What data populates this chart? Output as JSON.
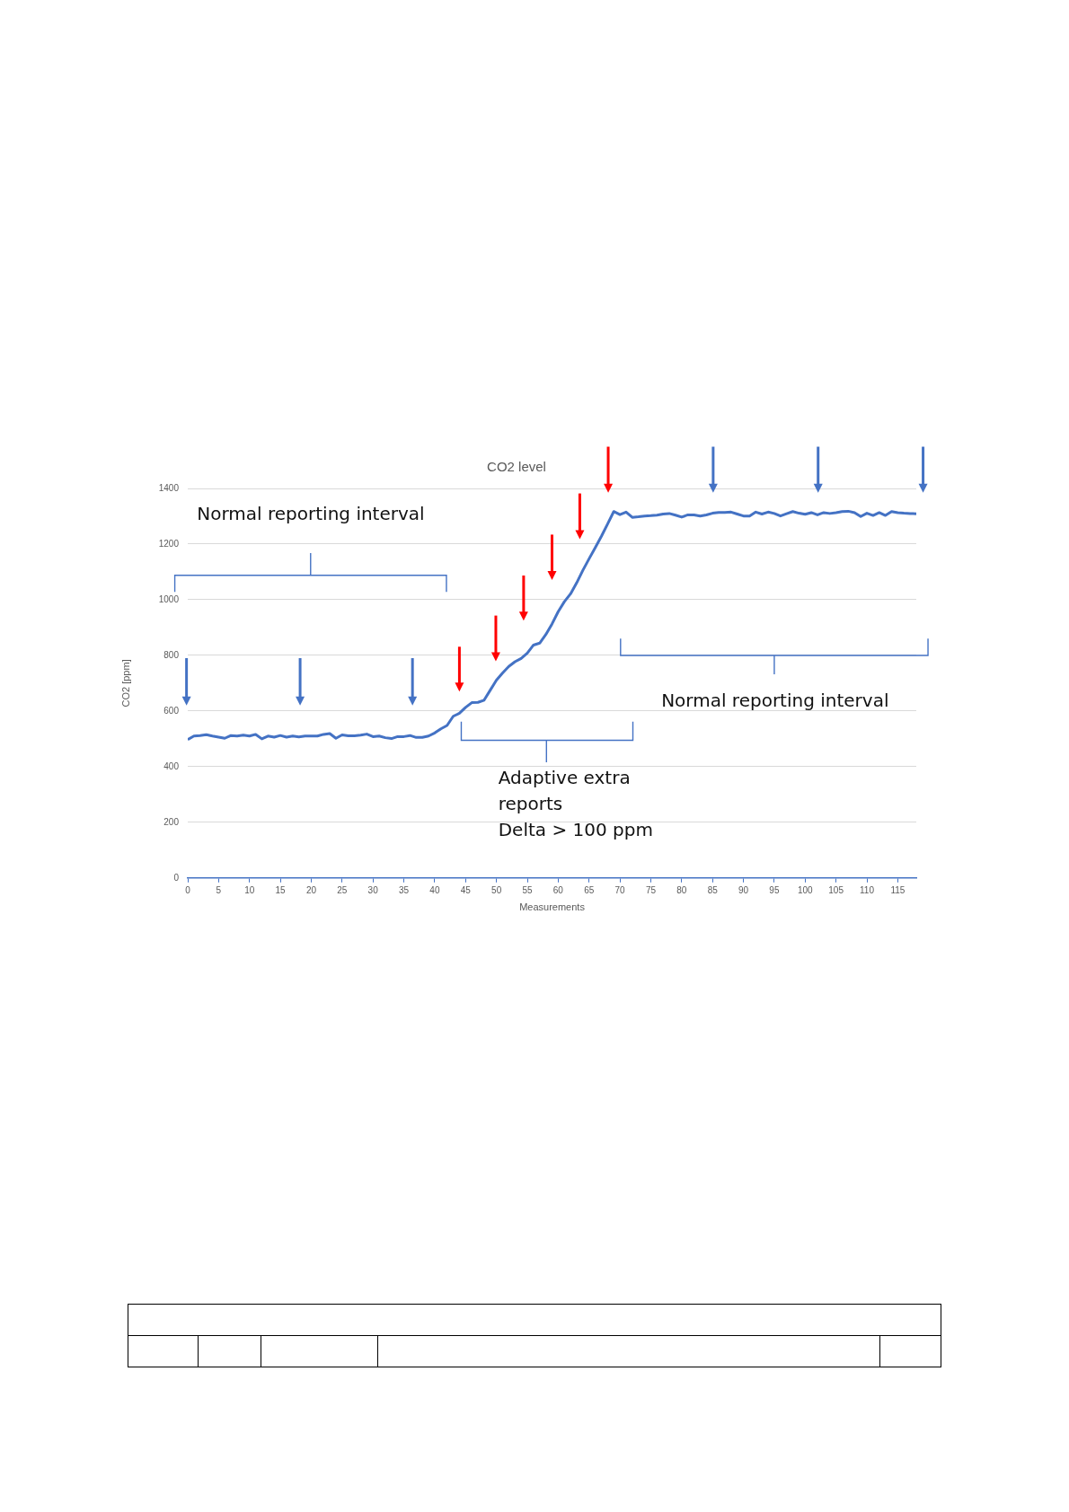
{
  "chart_data": {
    "type": "line",
    "title": "CO2 level",
    "xlabel": "Measurements",
    "ylabel": "CO2 [ppm]",
    "x": [
      0,
      1,
      2,
      3,
      4,
      5,
      6,
      7,
      8,
      9,
      10,
      11,
      12,
      13,
      14,
      15,
      16,
      17,
      18,
      19,
      20,
      21,
      22,
      23,
      24,
      25,
      26,
      27,
      28,
      29,
      30,
      31,
      32,
      33,
      34,
      35,
      36,
      37,
      38,
      39,
      40,
      41,
      42,
      43,
      44,
      45,
      46,
      47,
      48,
      49,
      50,
      51,
      52,
      53,
      54,
      55,
      56,
      57,
      58,
      59,
      60,
      61,
      62,
      63,
      64,
      65,
      66,
      67,
      68,
      69,
      70,
      71,
      72,
      73,
      74,
      75,
      76,
      77,
      78,
      79,
      80,
      81,
      82,
      83,
      84,
      85,
      86,
      87,
      88,
      89,
      90,
      91,
      92,
      93,
      94,
      95,
      96,
      97,
      98,
      99,
      100,
      101,
      102,
      103,
      104,
      105,
      106,
      107,
      108,
      109,
      110,
      111,
      112,
      113,
      114,
      115,
      116,
      117,
      118
    ],
    "series": [
      {
        "color": "#4472c4",
        "values": [
          497,
          510,
          512,
          515,
          510,
          506,
          502,
          512,
          510,
          513,
          510,
          516,
          500,
          510,
          506,
          512,
          506,
          510,
          507,
          510,
          510,
          510,
          516,
          519,
          502,
          514,
          511,
          511,
          513,
          517,
          508,
          510,
          504,
          501,
          508,
          508,
          512,
          505,
          505,
          510,
          521,
          536,
          548,
          581,
          592,
          613,
          630,
          631,
          639,
          675,
          711,
          737,
          760,
          777,
          789,
          808,
          837,
          844,
          875,
          913,
          957,
          993,
          1021,
          1061,
          1106,
          1147,
          1187,
          1228,
          1272,
          1317,
          1306,
          1315,
          1296,
          1298,
          1301,
          1302,
          1304,
          1308,
          1310,
          1304,
          1297,
          1305,
          1305,
          1301,
          1305,
          1311,
          1314,
          1314,
          1315,
          1308,
          1301,
          1301,
          1315,
          1308,
          1315,
          1310,
          1301,
          1309,
          1317,
          1311,
          1307,
          1313,
          1305,
          1313,
          1310,
          1313,
          1317,
          1318,
          1313,
          1299,
          1311,
          1303,
          1313,
          1303,
          1317,
          1313,
          1311,
          1310,
          1309
        ]
      }
    ],
    "xlim": [
      0,
      118
    ],
    "xticks": [
      0,
      5,
      10,
      15,
      20,
      25,
      30,
      35,
      40,
      45,
      50,
      55,
      60,
      65,
      70,
      75,
      80,
      85,
      90,
      95,
      100,
      105,
      110,
      115
    ],
    "ylim": [
      0,
      1400
    ],
    "yticks": [
      0,
      200,
      400,
      600,
      800,
      1000,
      1200,
      1400
    ],
    "grid": "y",
    "legend": false,
    "marker": "none",
    "line_style": "solid",
    "annotations": [
      "Normal reporting interval",
      "Normal reporting interval",
      "Adaptive extra reports\nDelta > 100 ppm"
    ]
  }
}
